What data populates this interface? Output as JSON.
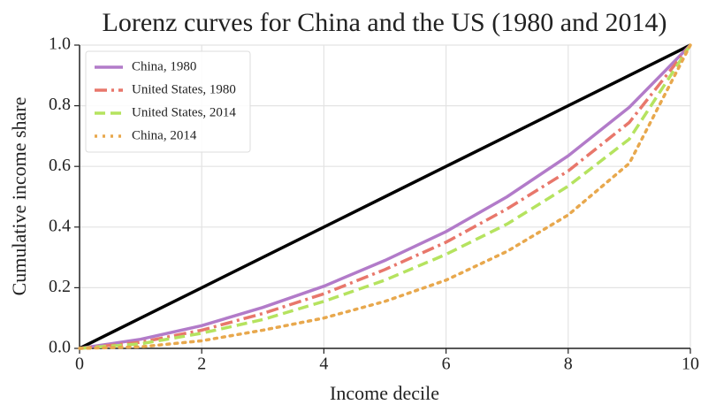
{
  "chart_data": {
    "type": "line",
    "title": "Lorenz curves for China and the US (1980 and 2014)",
    "x_label": "Income decile",
    "y_label": "Cumulative income share",
    "x": [
      0,
      1,
      2,
      3,
      4,
      5,
      6,
      7,
      8,
      9,
      10
    ],
    "series": [
      {
        "color": "#000000",
        "dash": "solid",
        "values": [
          0,
          0.1,
          0.2,
          0.3,
          0.4,
          0.5,
          0.6,
          0.7,
          0.8,
          0.9,
          1.0
        ]
      },
      {
        "name": "China, 1980",
        "color": "#b27bc9",
        "dash": "solid",
        "values": [
          0,
          0.03,
          0.075,
          0.135,
          0.205,
          0.29,
          0.385,
          0.5,
          0.635,
          0.795,
          1.0
        ]
      },
      {
        "name": "United States, 1980",
        "color": "#e8776b",
        "dash": "dashdot",
        "values": [
          0,
          0.02,
          0.06,
          0.115,
          0.18,
          0.26,
          0.35,
          0.46,
          0.585,
          0.745,
          1.0
        ]
      },
      {
        "name": "United States, 2014",
        "color": "#b5e35f",
        "dash": "dashed",
        "values": [
          0,
          0.015,
          0.05,
          0.095,
          0.155,
          0.225,
          0.31,
          0.41,
          0.535,
          0.69,
          1.0
        ]
      },
      {
        "name": "China, 2014",
        "color": "#e8a84d",
        "dash": "dotted",
        "values": [
          0,
          0.005,
          0.025,
          0.06,
          0.1,
          0.155,
          0.225,
          0.32,
          0.44,
          0.61,
          1.0
        ]
      }
    ],
    "xlim": [
      0,
      10
    ],
    "xticks": [
      0,
      2,
      4,
      6,
      8,
      10
    ],
    "ylim": [
      0,
      1
    ],
    "yticks": [
      {
        "value": 0,
        "label": "0.0"
      },
      0.2,
      0.4,
      0.6,
      0.8,
      {
        "value": 1,
        "label": "1.0"
      }
    ],
    "grid": true,
    "legend": "upper-left"
  }
}
